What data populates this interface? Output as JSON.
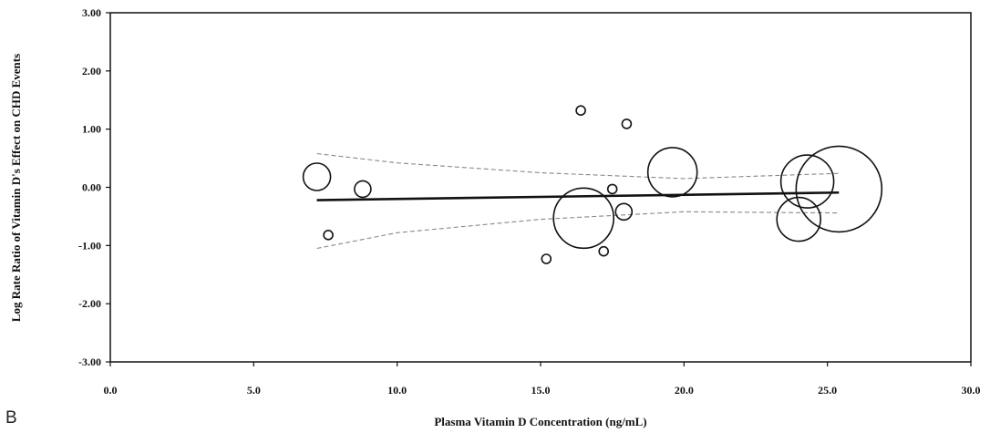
{
  "chart_data": {
    "type": "scatter",
    "title": "",
    "xlabel": "Plasma Vitamin D Concentration (ng/mL)",
    "ylabel": "Log Rate Ratio of Vitamin D's Effect on CHD Events",
    "xlim": [
      0,
      30
    ],
    "ylim": [
      -3,
      3
    ],
    "x_ticks": [
      "0.0",
      "5.0",
      "10.0",
      "15.0",
      "20.0",
      "25.0",
      "30.0"
    ],
    "y_ticks": [
      "3.00",
      "2.00",
      "1.00",
      "0.00",
      "-1.00",
      "-2.00",
      "-3.00"
    ],
    "grid": false,
    "legend": "none",
    "bubble_note": "bubble size proportional to study weight",
    "points": [
      {
        "x": 7.2,
        "y": 0.18,
        "weight": 15
      },
      {
        "x": 7.6,
        "y": -0.82,
        "weight": 5
      },
      {
        "x": 8.8,
        "y": -0.03,
        "weight": 9
      },
      {
        "x": 15.2,
        "y": -1.23,
        "weight": 5
      },
      {
        "x": 16.4,
        "y": 1.32,
        "weight": 5
      },
      {
        "x": 16.5,
        "y": -0.53,
        "weight": 33
      },
      {
        "x": 17.2,
        "y": -1.1,
        "weight": 5
      },
      {
        "x": 17.5,
        "y": -0.03,
        "weight": 5
      },
      {
        "x": 17.9,
        "y": -0.42,
        "weight": 9
      },
      {
        "x": 18.0,
        "y": 1.09,
        "weight": 5
      },
      {
        "x": 19.6,
        "y": 0.26,
        "weight": 27
      },
      {
        "x": 24.0,
        "y": -0.55,
        "weight": 24
      },
      {
        "x": 24.3,
        "y": 0.1,
        "weight": 29
      },
      {
        "x": 25.4,
        "y": -0.03,
        "weight": 47
      }
    ],
    "regression": {
      "x": [
        7.2,
        25.4
      ],
      "y": [
        -0.22,
        -0.09
      ]
    },
    "ci_upper": {
      "x": [
        7.2,
        10,
        15,
        20,
        25.4
      ],
      "y": [
        0.58,
        0.42,
        0.25,
        0.15,
        0.24
      ]
    },
    "ci_lower": {
      "x": [
        7.2,
        10,
        15,
        20,
        25.4
      ],
      "y": [
        -1.05,
        -0.78,
        -0.55,
        -0.42,
        -0.44
      ]
    }
  },
  "panel_label": "B",
  "colors": {
    "axis": "#111111",
    "bubble": "#111111",
    "regression": "#111111",
    "ci": "#888888"
  }
}
